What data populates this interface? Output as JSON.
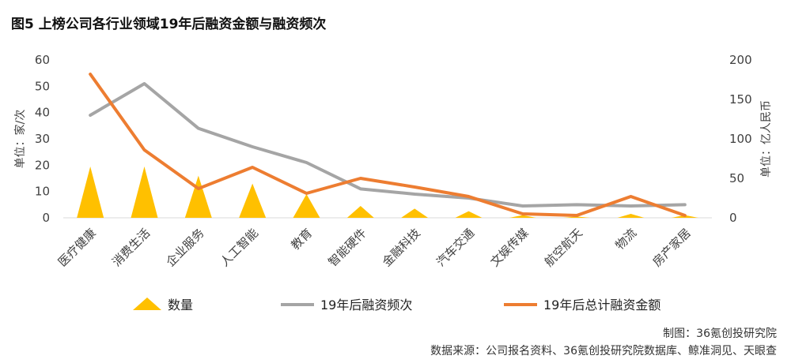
{
  "title": "图5 上榜公司各行业领域19年后融资金额与融资频次",
  "footer": {
    "credit": "制图：36氪创投研究院",
    "source": "数据来源：公司报名资料、36氪创投研究院数据库、鲸准洞见、天眼查"
  },
  "chart_data": {
    "type": "bar",
    "categories": [
      "医疗健康",
      "消费生活",
      "企业服务",
      "人工智能",
      "教育",
      "智能硬件",
      "金融科技",
      "汽车交通",
      "文娱传媒",
      "航空航天",
      "物流",
      "房产家居"
    ],
    "y_left": {
      "label": "单位：家/次",
      "ticks": [
        "0",
        "10",
        "20",
        "30",
        "40",
        "50",
        "60"
      ],
      "ylim": [
        0,
        60
      ]
    },
    "y_right": {
      "label": "单位：亿人民币",
      "ticks": [
        "0",
        "50",
        "100",
        "150",
        "200"
      ],
      "ylim": [
        0,
        200
      ]
    },
    "series": [
      {
        "name": "数量",
        "type": "triangle",
        "axis": "left",
        "color": "#FFC000",
        "values": [
          19.5,
          19.5,
          16,
          13,
          9,
          4.5,
          3.5,
          2.5,
          1,
          0.5,
          1.5,
          1
        ]
      },
      {
        "name": "19年后融资频次",
        "type": "line",
        "axis": "left",
        "color": "#A5A5A5",
        "values": [
          39,
          51,
          34,
          27,
          21,
          11,
          9,
          7.5,
          4.5,
          5,
          4.5,
          5
        ]
      },
      {
        "name": "19年后总计融资金额",
        "type": "line",
        "axis": "right",
        "color": "#ED7D31",
        "values": [
          182,
          86,
          37,
          64,
          31,
          50,
          39,
          27,
          5,
          3,
          27,
          3
        ]
      }
    ],
    "legend_position": "bottom",
    "grid": false
  }
}
